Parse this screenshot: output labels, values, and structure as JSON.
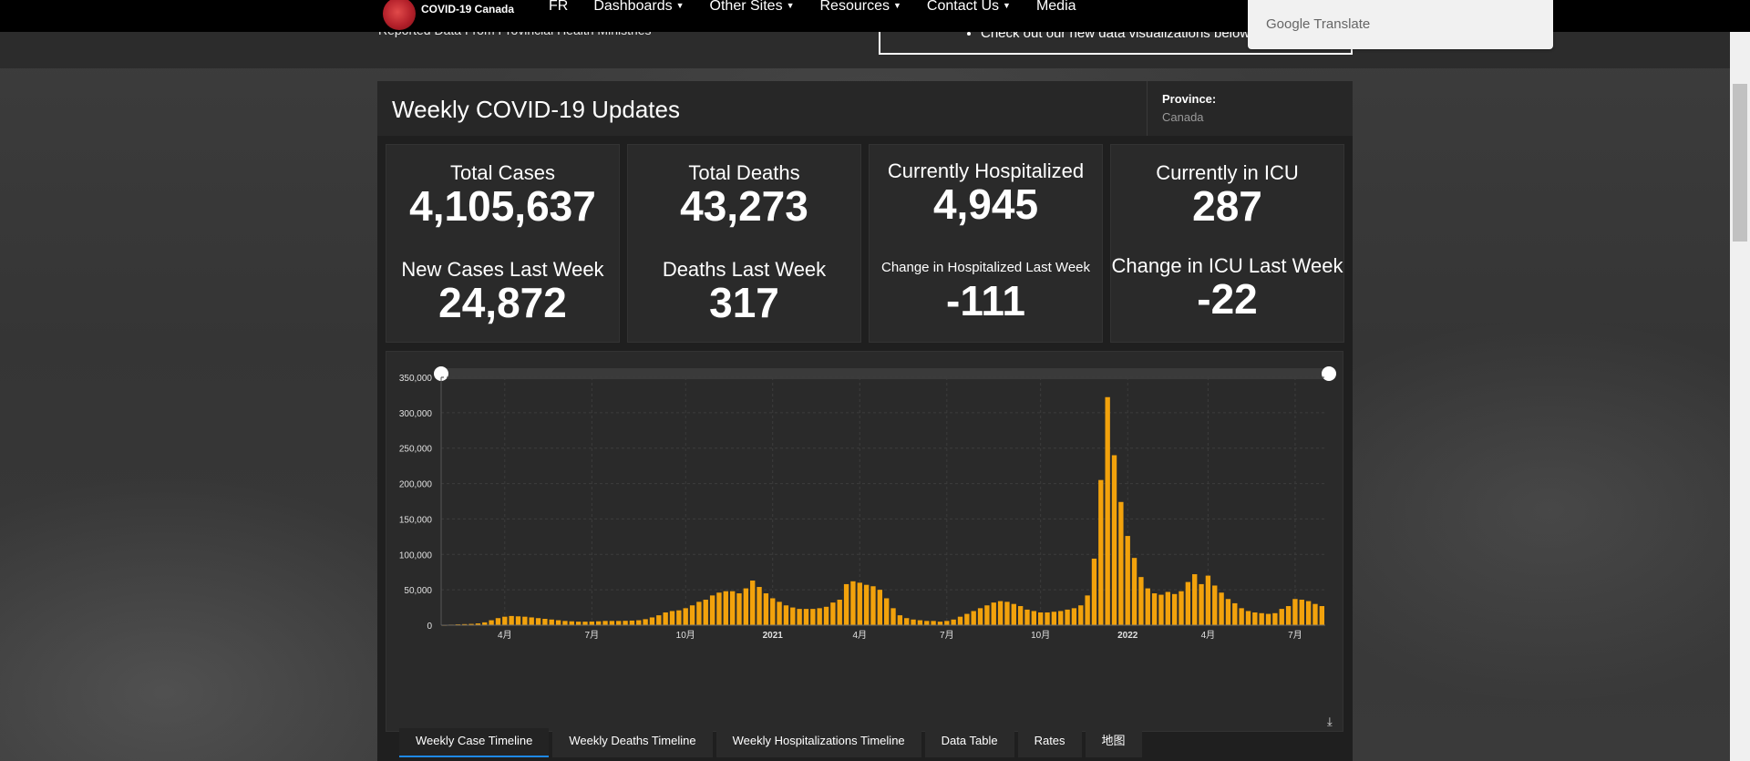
{
  "nav": {
    "brand": "COVID-19 Canada",
    "links": [
      {
        "label": "FR",
        "caret": false
      },
      {
        "label": "Dashboards",
        "caret": true
      },
      {
        "label": "Other Sites",
        "caret": true
      },
      {
        "label": "Resources",
        "caret": true
      },
      {
        "label": "Contact Us",
        "caret": true
      },
      {
        "label": "Media",
        "caret": false
      }
    ]
  },
  "subheader": {
    "subtitle": "Reported Data From Provincial Health Ministries",
    "notice": "Check out our new data visualizations below"
  },
  "google_translate": {
    "google": "Google",
    "translate": "Translate"
  },
  "dashboard": {
    "title": "Weekly COVID-19 Updates",
    "province_label": "Province:",
    "province_value": "Canada",
    "cards": [
      {
        "label1": "Total Cases",
        "value1": "4,105,637",
        "label2": "New Cases Last Week",
        "value2": "24,872"
      },
      {
        "label1": "Total Deaths",
        "value1": "43,273",
        "label2": "Deaths Last Week",
        "value2": "317"
      },
      {
        "label1": "Currently Hospitalized",
        "value1": "4,945",
        "label2": "Change in Hospitalized Last Week",
        "value2": "-111"
      },
      {
        "label1": "Currently in ICU",
        "value1": "287",
        "label2": "Change in ICU Last Week",
        "value2": "-22"
      }
    ],
    "tabs": [
      {
        "label": "Weekly Case Timeline",
        "active": true
      },
      {
        "label": "Weekly Deaths Timeline",
        "active": false
      },
      {
        "label": "Weekly Hospitalizations Timeline",
        "active": false
      },
      {
        "label": "Data Table",
        "active": false
      },
      {
        "label": "Rates",
        "active": false
      },
      {
        "label": "地图",
        "active": false
      }
    ]
  },
  "colors": {
    "bar": "#f2a20c",
    "accent": "#1e88e5"
  },
  "icons": {
    "download": "download-icon",
    "logo": "virus-logo-icon"
  },
  "chart_data": {
    "type": "bar",
    "title": "",
    "xlabel": "",
    "ylabel": "",
    "ylim": [
      0,
      350000
    ],
    "yticks": [
      0,
      50000,
      100000,
      150000,
      200000,
      250000,
      300000,
      350000
    ],
    "ytick_labels": [
      "0",
      "50,000",
      "100,000",
      "150,000",
      "200,000",
      "250,000",
      "300,000",
      "350,000"
    ],
    "xtick_labels": [
      {
        "label": "4月",
        "index": 9
      },
      {
        "label": "7月",
        "index": 22
      },
      {
        "label": "10月",
        "index": 36
      },
      {
        "label": "2021",
        "index": 49
      },
      {
        "label": "4月",
        "index": 62
      },
      {
        "label": "7月",
        "index": 75
      },
      {
        "label": "10月",
        "index": 89
      },
      {
        "label": "2022",
        "index": 102
      },
      {
        "label": "4月",
        "index": 114
      },
      {
        "label": "7月",
        "index": 127
      }
    ],
    "grid": true,
    "series": [
      {
        "values": [
          500,
          800,
          1200,
          1500,
          1800,
          2500,
          4000,
          7000,
          10000,
          12000,
          13000,
          12500,
          12000,
          11000,
          10000,
          9000,
          8000,
          7000,
          6000,
          5500,
          5000,
          5000,
          5200,
          5500,
          6000,
          6000,
          6000,
          6200,
          6500,
          7000,
          8500,
          11000,
          14000,
          18000,
          20000,
          21000,
          24000,
          28000,
          33000,
          36000,
          42000,
          46000,
          48000,
          48000,
          45000,
          52000,
          63000,
          54000,
          45000,
          38000,
          33000,
          28000,
          25000,
          23000,
          23000,
          23000,
          24000,
          26000,
          32000,
          36000,
          58000,
          62000,
          60000,
          57000,
          55000,
          50000,
          38000,
          24000,
          14000,
          10000,
          8000,
          7000,
          6000,
          6000,
          5000,
          6000,
          8000,
          12000,
          16000,
          20000,
          24000,
          28000,
          32000,
          34000,
          33000,
          30000,
          27000,
          22000,
          20000,
          18000,
          18000,
          19000,
          20000,
          22000,
          24000,
          28000,
          42000,
          94000,
          205000,
          322000,
          240000,
          174000,
          126000,
          95000,
          68000,
          52000,
          45000,
          43000,
          47000,
          44000,
          48000,
          61000,
          72000,
          58000,
          70000,
          56000,
          46000,
          37000,
          31000,
          24000,
          20000,
          18000,
          17000,
          16000,
          17000,
          23000,
          27000,
          37000,
          36000,
          34000,
          30000,
          27000
        ]
      }
    ]
  }
}
